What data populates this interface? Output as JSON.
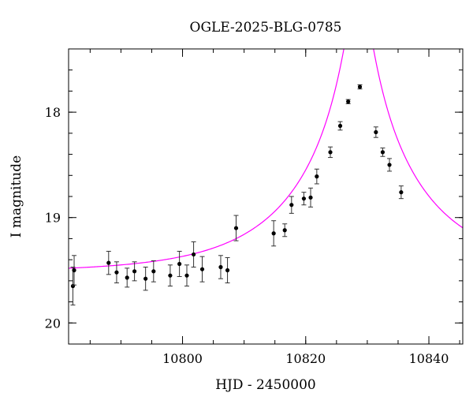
{
  "chart_data": {
    "type": "scatter",
    "title": "OGLE-2025-BLG-0785",
    "xlabel": "HJD - 2450000",
    "ylabel": "I magnitude",
    "xlim": [
      10781.5,
      10845.5
    ],
    "ylim": [
      20.2,
      17.4
    ],
    "y_inverted": true,
    "x_ticks": [
      10800,
      10820,
      10840
    ],
    "x_tick_labels": [
      "10800",
      "10820",
      "10840"
    ],
    "x_minor_step": 5,
    "y_ticks": [
      18,
      19,
      20
    ],
    "y_tick_labels": [
      "18",
      "19",
      "20"
    ],
    "y_minor_step": 0.2,
    "grid": false,
    "legend": false,
    "series": [
      {
        "kind": "points_with_errorbars",
        "color": "#000000",
        "points": [
          {
            "x": 10782.2,
            "y": 19.65,
            "err": 0.18
          },
          {
            "x": 10782.4,
            "y": 19.5,
            "err": 0.14
          },
          {
            "x": 10788.0,
            "y": 19.43,
            "err": 0.11
          },
          {
            "x": 10789.3,
            "y": 19.52,
            "err": 0.1
          },
          {
            "x": 10791.0,
            "y": 19.57,
            "err": 0.09
          },
          {
            "x": 10792.2,
            "y": 19.51,
            "err": 0.09
          },
          {
            "x": 10794.0,
            "y": 19.58,
            "err": 0.11
          },
          {
            "x": 10795.3,
            "y": 19.51,
            "err": 0.1
          },
          {
            "x": 10798.0,
            "y": 19.55,
            "err": 0.1
          },
          {
            "x": 10799.5,
            "y": 19.44,
            "err": 0.12
          },
          {
            "x": 10800.7,
            "y": 19.55,
            "err": 0.1
          },
          {
            "x": 10801.8,
            "y": 19.35,
            "err": 0.12
          },
          {
            "x": 10803.2,
            "y": 19.49,
            "err": 0.12
          },
          {
            "x": 10806.2,
            "y": 19.47,
            "err": 0.11
          },
          {
            "x": 10807.3,
            "y": 19.5,
            "err": 0.12
          },
          {
            "x": 10808.7,
            "y": 19.1,
            "err": 0.12
          },
          {
            "x": 10814.8,
            "y": 19.15,
            "err": 0.12
          },
          {
            "x": 10816.6,
            "y": 19.12,
            "err": 0.06
          },
          {
            "x": 10817.7,
            "y": 18.88,
            "err": 0.08
          },
          {
            "x": 10819.7,
            "y": 18.82,
            "err": 0.06
          },
          {
            "x": 10820.8,
            "y": 18.81,
            "err": 0.09
          },
          {
            "x": 10821.8,
            "y": 18.61,
            "err": 0.07
          },
          {
            "x": 10824.0,
            "y": 18.38,
            "err": 0.05
          },
          {
            "x": 10825.6,
            "y": 18.13,
            "err": 0.04
          },
          {
            "x": 10826.9,
            "y": 17.9,
            "err": 0.02
          },
          {
            "x": 10828.8,
            "y": 17.76,
            "err": 0.02
          },
          {
            "x": 10831.4,
            "y": 18.19,
            "err": 0.05
          },
          {
            "x": 10832.5,
            "y": 18.38,
            "err": 0.04
          },
          {
            "x": 10833.6,
            "y": 18.5,
            "err": 0.06
          },
          {
            "x": 10835.5,
            "y": 18.76,
            "err": 0.06
          }
        ]
      },
      {
        "kind": "model_curve",
        "color": "#ff00ff",
        "model": "paczynski",
        "params": {
          "t0": 10828.6,
          "tE": 20.0,
          "u0": 0.0773,
          "baseline": 19.52
        }
      }
    ]
  }
}
